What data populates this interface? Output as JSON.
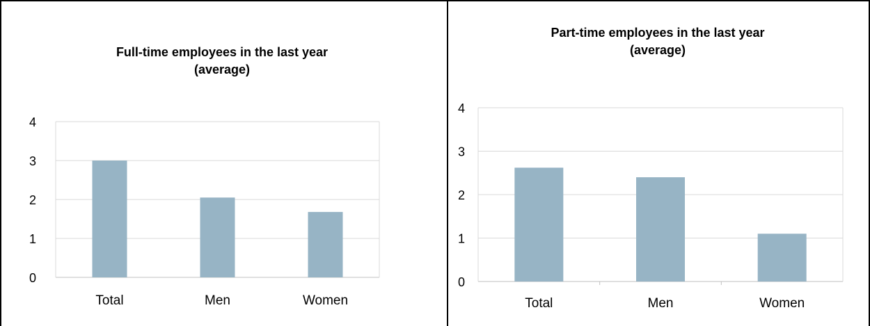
{
  "chart_data": [
    {
      "type": "bar",
      "title_lines": [
        "Full-time employees in the last year",
        "(average)"
      ],
      "categories": [
        "Total",
        "Men",
        "Women"
      ],
      "values": [
        3.0,
        2.05,
        1.68
      ],
      "ylim": [
        0,
        4
      ],
      "yticks": [
        "0",
        "1",
        "2",
        "3",
        "4"
      ],
      "xlabel": "",
      "ylabel": "",
      "grid": true,
      "bar_color": "#97b4c5"
    },
    {
      "type": "bar",
      "title_lines": [
        "Part-time employees in the last year",
        "(average)"
      ],
      "categories": [
        "Total",
        "Men",
        "Women"
      ],
      "values": [
        2.62,
        2.4,
        1.1
      ],
      "ylim": [
        0,
        4
      ],
      "yticks": [
        "0",
        "1",
        "2",
        "3",
        "4"
      ],
      "xlabel": "",
      "ylabel": "",
      "grid": true,
      "bar_color": "#97b4c5"
    }
  ]
}
